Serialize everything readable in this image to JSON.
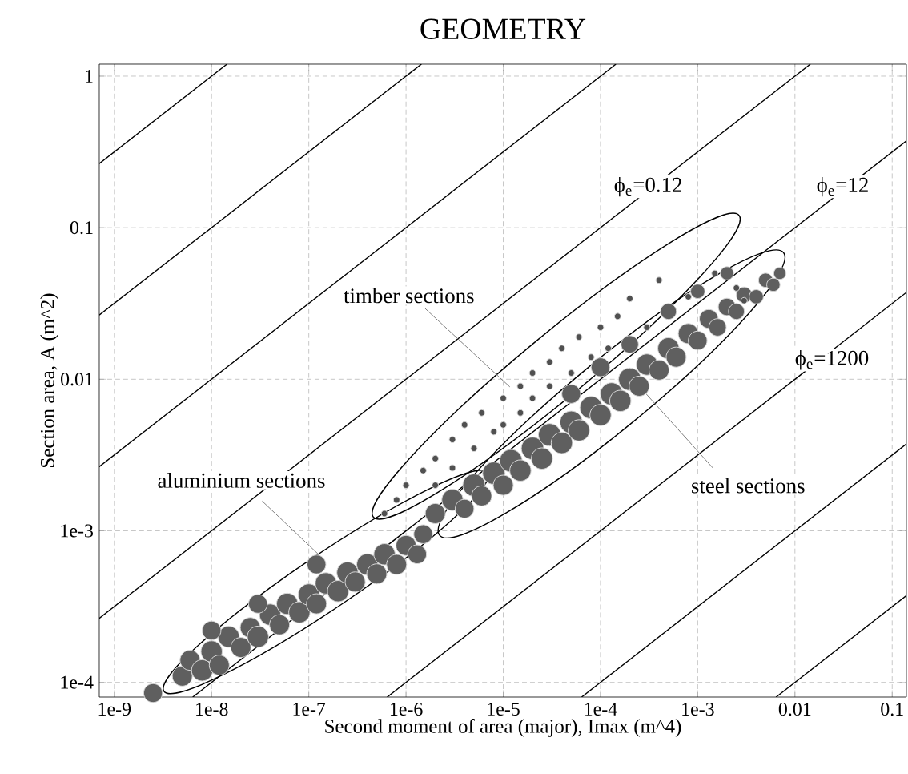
{
  "chart_data": {
    "type": "bubble",
    "title": "GEOMETRY",
    "xlabel": "Second moment of area (major), Imax (m^4)",
    "ylabel": "Section area, A (m^2)",
    "log": "xy",
    "grid": true,
    "xlim": [
      7e-10,
      0.14
    ],
    "ylim": [
      8e-05,
      1.2
    ],
    "xticks": [
      {
        "value": 1e-09,
        "label": "1e-9"
      },
      {
        "value": 1e-08,
        "label": "1e-8"
      },
      {
        "value": 1e-07,
        "label": "1e-7"
      },
      {
        "value": 1e-06,
        "label": "1e-6"
      },
      {
        "value": 1e-05,
        "label": "1e-5"
      },
      {
        "value": 0.0001,
        "label": "1e-4"
      },
      {
        "value": 0.001,
        "label": "1e-3"
      },
      {
        "value": 0.01,
        "label": "0.01"
      },
      {
        "value": 0.1,
        "label": "0.1"
      }
    ],
    "yticks": [
      {
        "value": 0.0001,
        "label": "1e-4"
      },
      {
        "value": 0.001,
        "label": "1e-3"
      },
      {
        "value": 0.01,
        "label": "0.01"
      },
      {
        "value": 0.1,
        "label": "0.1"
      },
      1
    ],
    "series": [
      {
        "color": "#5f5f5f",
        "x": [
          2e-06,
          3e-06,
          4e-06,
          5e-06,
          6e-06,
          8e-06,
          1e-05,
          1.2e-05,
          1.5e-05,
          2e-05,
          2.5e-05,
          3e-05,
          4e-05,
          5e-05,
          6e-05,
          8e-05,
          0.0001,
          0.00013,
          0.00016,
          0.0002,
          0.00025,
          0.0003,
          0.0004,
          0.0005,
          0.0006,
          0.0008,
          0.001,
          0.0013,
          0.0016,
          0.002,
          0.0025,
          0.003,
          0.004,
          0.005,
          0.006,
          0.007,
          5e-05,
          0.0001,
          0.0002,
          0.0005,
          0.001,
          0.002
        ],
        "values": [
          0.0013,
          0.0016,
          0.0014,
          0.002,
          0.0017,
          0.0024,
          0.002,
          0.0029,
          0.0025,
          0.0035,
          0.003,
          0.0043,
          0.0038,
          0.0052,
          0.0046,
          0.0065,
          0.0058,
          0.008,
          0.0072,
          0.01,
          0.009,
          0.0125,
          0.0115,
          0.016,
          0.014,
          0.02,
          0.018,
          0.025,
          0.022,
          0.03,
          0.028,
          0.036,
          0.035,
          0.045,
          0.042,
          0.05,
          0.008,
          0.012,
          0.017,
          0.028,
          0.038,
          0.05
        ],
        "sizes": [
          0.8,
          0.9,
          0.7,
          1,
          0.8,
          1,
          0.8,
          1,
          0.9,
          1,
          0.9,
          1,
          0.9,
          1,
          0.9,
          1,
          0.9,
          1,
          0.9,
          1,
          0.8,
          0.9,
          0.8,
          0.9,
          0.8,
          0.8,
          0.7,
          0.7,
          0.6,
          0.6,
          0.5,
          0.5,
          0.4,
          0.4,
          0.35,
          0.3,
          0.7,
          0.7,
          0.6,
          0.5,
          0.4,
          0.35
        ]
      },
      {
        "color": "#5f5f5f",
        "x": [
          2.5e-09,
          5e-09,
          6e-09,
          8e-09,
          1e-08,
          1.2e-08,
          1.5e-08,
          2e-08,
          2.5e-08,
          3e-08,
          4e-08,
          5e-08,
          6e-08,
          8e-08,
          1e-07,
          1.2e-07,
          1.5e-07,
          2e-07,
          2.5e-07,
          3e-07,
          4e-07,
          5e-07,
          6e-07,
          8e-07,
          1e-06,
          1.3e-06,
          1.5e-06,
          1.2e-07,
          3e-08,
          1e-08
        ],
        "values": [
          8.5e-05,
          0.00011,
          0.00014,
          0.00012,
          0.00016,
          0.00013,
          0.0002,
          0.00017,
          0.00023,
          0.0002,
          0.00028,
          0.00024,
          0.00033,
          0.00029,
          0.00038,
          0.00033,
          0.00045,
          0.0004,
          0.00053,
          0.00046,
          0.0006,
          0.00052,
          0.0007,
          0.0006,
          0.0008,
          0.0007,
          0.00095,
          0.0006,
          0.00033,
          0.00022
        ],
        "sizes": [
          0.7,
          0.8,
          0.8,
          0.9,
          0.9,
          0.8,
          0.9,
          0.8,
          0.8,
          0.9,
          0.9,
          0.8,
          0.9,
          0.9,
          0.9,
          0.8,
          0.9,
          0.9,
          0.9,
          0.8,
          0.9,
          0.8,
          0.9,
          0.8,
          0.8,
          0.7,
          0.7,
          0.7,
          0.7,
          0.7
        ]
      },
      {
        "color": "#505050",
        "x": [
          6e-07,
          8e-07,
          1e-06,
          1.5e-06,
          2e-06,
          2e-06,
          3e-06,
          3e-06,
          4e-06,
          5e-06,
          6e-06,
          8e-06,
          1e-05,
          1e-05,
          1.5e-05,
          1.5e-05,
          2e-05,
          2e-05,
          3e-05,
          3e-05,
          4e-05,
          5e-05,
          6e-05,
          8e-05,
          0.0001,
          0.00012,
          0.00015,
          0.0002,
          0.0003,
          0.0004,
          0.0008,
          0.0015,
          0.0025,
          0.003
        ],
        "values": [
          0.0013,
          0.0016,
          0.002,
          0.0025,
          0.003,
          0.002,
          0.004,
          0.0026,
          0.005,
          0.0035,
          0.006,
          0.0045,
          0.0075,
          0.005,
          0.009,
          0.006,
          0.011,
          0.0075,
          0.013,
          0.009,
          0.016,
          0.011,
          0.019,
          0.014,
          0.022,
          0.016,
          0.026,
          0.034,
          0.022,
          0.045,
          0.035,
          0.05,
          0.04,
          0.033
        ],
        "sizes": [
          0.08,
          0.08,
          0.08,
          0.08,
          0.08,
          0.08,
          0.08,
          0.08,
          0.08,
          0.08,
          0.08,
          0.08,
          0.08,
          0.08,
          0.08,
          0.08,
          0.08,
          0.08,
          0.08,
          0.08,
          0.08,
          0.08,
          0.08,
          0.08,
          0.08,
          0.08,
          0.08,
          0.08,
          0.08,
          0.08,
          0.08,
          0.08,
          0.08,
          0.08
        ]
      },
      {
        "type": "line",
        "color": "#000000",
        "x": [
          7e-10,
          1.44e-08
        ],
        "values": [
          0.265,
          1.2
        ]
      },
      {
        "type": "line",
        "color": "#000000",
        "x": [
          7e-10,
          1.44e-06
        ],
        "values": [
          0.0265,
          1.2
        ]
      },
      {
        "type": "line",
        "color": "#000000",
        "x": [
          7e-10,
          0.000144
        ],
        "values": [
          0.00265,
          1.2
        ]
      },
      {
        "type": "line",
        "color": "#000000",
        "x": [
          7e-10,
          0.0144
        ],
        "values": [
          0.000265,
          1.2
        ]
      },
      {
        "type": "line",
        "color": "#000000",
        "x": [
          6.4e-09,
          0.14
        ],
        "values": [
          8e-05,
          0.374
        ]
      },
      {
        "type": "line",
        "color": "#000000",
        "x": [
          6.4e-07,
          0.14
        ],
        "values": [
          8e-05,
          0.0374
        ]
      },
      {
        "type": "line",
        "color": "#000000",
        "x": [
          6.4e-05,
          0.14
        ],
        "values": [
          8e-05,
          0.00374
        ]
      },
      {
        "type": "line",
        "color": "#000000",
        "x": [
          0.0064,
          0.14
        ],
        "values": [
          8e-05,
          0.000374
        ]
      }
    ],
    "annotations": [
      {
        "text": "ϕ$_{e}$=0.12",
        "x": 0.00031,
        "y": 0.186
      },
      {
        "text": "ϕ$_{e}$=12",
        "x": 0.031,
        "y": 0.186
      },
      {
        "text": "ϕ$_{e}$=1200",
        "x": 0.024,
        "y": 0.0134
      },
      {
        "text": "timber sections",
        "x": 1.17e-05,
        "y": 0.0089
      },
      {
        "text": "aluminium sections",
        "x": 1.35e-07,
        "y": 0.00067
      },
      {
        "text": "steel sections",
        "x": 0.00025,
        "y": 0.009
      }
    ]
  }
}
